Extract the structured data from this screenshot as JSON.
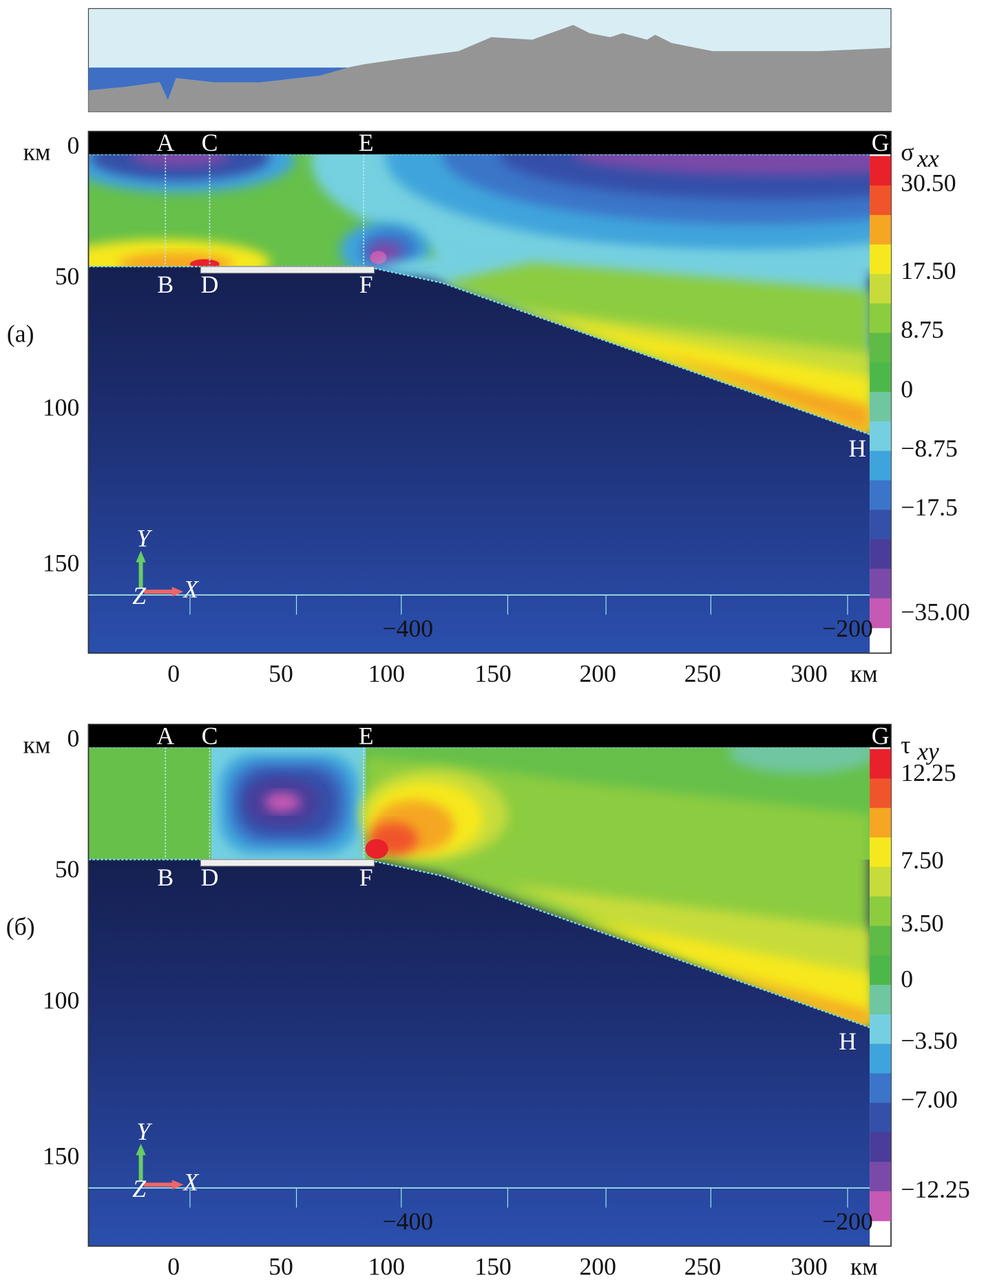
{
  "panels": [
    {
      "label": "(а)",
      "quantity": "σ",
      "subscript": "xx",
      "y_unit": "км",
      "y_ticks": [
        "0",
        "50",
        "100",
        "150"
      ],
      "x_ticks": [
        "0",
        "50",
        "100",
        "150",
        "200",
        "250",
        "300"
      ],
      "x_unit": "км",
      "points": [
        "A",
        "B",
        "C",
        "D",
        "E",
        "F",
        "G",
        "H"
      ],
      "axes_triad": [
        "Y",
        "Z",
        "X"
      ],
      "inner_ticks": [
        "−400",
        "−200"
      ],
      "colorbar_labels": [
        "30.50",
        "17.50",
        "8.75",
        "0",
        "−8.75",
        "−17.5",
        "−35.00"
      ]
    },
    {
      "label": "(б)",
      "quantity": "τ",
      "subscript": "xy",
      "y_unit": "км",
      "y_ticks": [
        "0",
        "50",
        "100",
        "150"
      ],
      "x_ticks": [
        "0",
        "50",
        "100",
        "150",
        "200",
        "250",
        "300"
      ],
      "x_unit": "км",
      "points": [
        "A",
        "B",
        "C",
        "D",
        "E",
        "F",
        "G",
        "H"
      ],
      "axes_triad": [
        "Y",
        "Z",
        "X"
      ],
      "inner_ticks": [
        "−400",
        "−200"
      ],
      "colorbar_labels": [
        "12.25",
        "7.50",
        "3.50",
        "0",
        "−3.50",
        "−7.00",
        "−12.25"
      ]
    }
  ]
}
